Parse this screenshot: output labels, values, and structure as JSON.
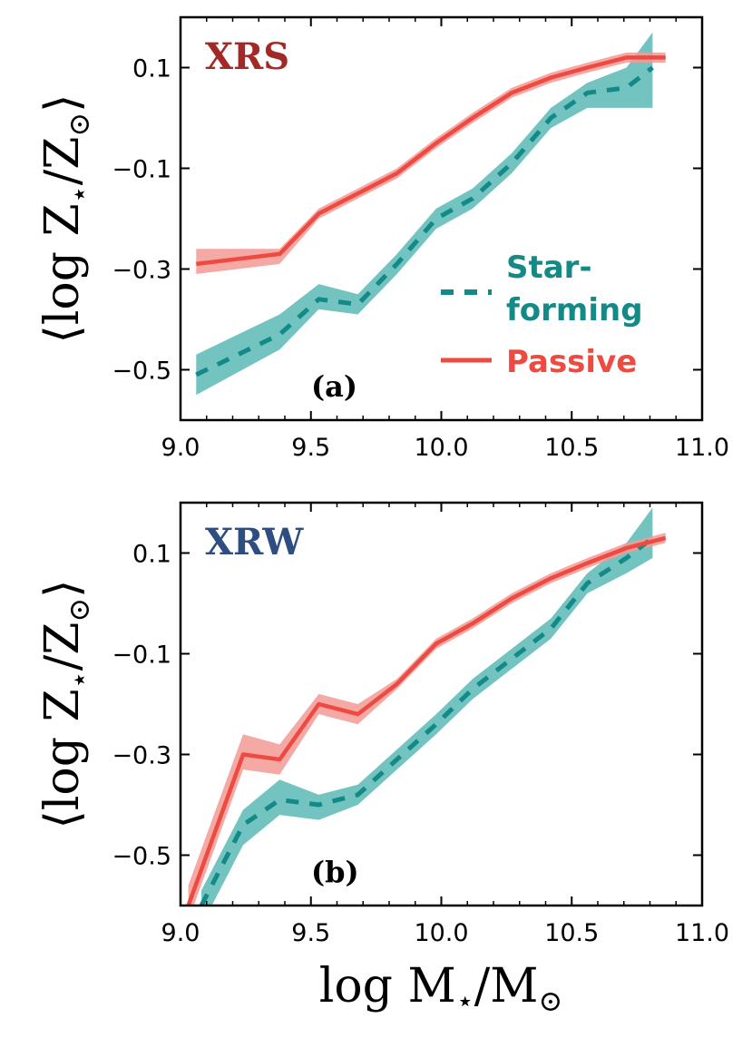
{
  "figure": {
    "xlabel": "log M",
    "xlabel_sub": "⋆",
    "xlabel_slash": "/M",
    "xlabel_sun": "⊙",
    "ylabel_open": "⟨log Z",
    "ylabel_sub": "⋆",
    "ylabel_mid": "/Z",
    "ylabel_sun": "⊙",
    "ylabel_close": "⟩",
    "legend": {
      "starforming_line1": "Star-",
      "starforming_line2": "forming",
      "passive": "Passive"
    }
  },
  "colors": {
    "starforming": "#138a86",
    "starforming_band": "#5bb8b6",
    "passive": "#ee4a42",
    "passive_band": "#f39a95",
    "xrs": "#a32828",
    "xrw": "#2e4e82"
  },
  "chart_data": [
    {
      "type": "line",
      "title": "XRS",
      "tag": "(a)",
      "xlim": [
        9.0,
        11.0
      ],
      "ylim": [
        -0.6,
        0.2
      ],
      "xticks": [
        "9.0",
        "9.5",
        "10.0",
        "10.5",
        "11.0"
      ],
      "yticks": [
        "0.1",
        "−0.1",
        "−0.3",
        "−0.5"
      ],
      "ytick_values": [
        0.1,
        -0.1,
        -0.3,
        -0.5
      ],
      "legend_position": "middle-right",
      "series": [
        {
          "name": "Star-forming",
          "style": "dashed",
          "x": [
            9.06,
            9.38,
            9.53,
            9.68,
            9.83,
            9.98,
            10.12,
            10.27,
            10.42,
            10.56,
            10.71,
            10.81
          ],
          "y": [
            -0.51,
            -0.43,
            -0.36,
            -0.37,
            -0.29,
            -0.2,
            -0.16,
            -0.09,
            0.0,
            0.05,
            0.06,
            0.1
          ],
          "y_low": [
            -0.55,
            -0.46,
            -0.38,
            -0.39,
            -0.31,
            -0.22,
            -0.18,
            -0.11,
            -0.02,
            0.02,
            0.02,
            0.02
          ],
          "y_high": [
            -0.47,
            -0.39,
            -0.33,
            -0.35,
            -0.27,
            -0.18,
            -0.14,
            -0.07,
            0.02,
            0.07,
            0.1,
            0.17
          ]
        },
        {
          "name": "Passive",
          "style": "solid",
          "x": [
            9.06,
            9.38,
            9.53,
            9.68,
            9.83,
            9.98,
            10.12,
            10.27,
            10.42,
            10.56,
            10.71,
            10.86
          ],
          "y": [
            -0.29,
            -0.27,
            -0.19,
            -0.15,
            -0.11,
            -0.05,
            0.0,
            0.05,
            0.08,
            0.1,
            0.12,
            0.12
          ],
          "y_low": [
            -0.31,
            -0.29,
            -0.2,
            -0.16,
            -0.12,
            -0.06,
            -0.01,
            0.04,
            0.07,
            0.09,
            0.11,
            0.11
          ],
          "y_high": [
            -0.26,
            -0.26,
            -0.18,
            -0.14,
            -0.1,
            -0.04,
            0.01,
            0.06,
            0.09,
            0.11,
            0.13,
            0.13
          ]
        }
      ]
    },
    {
      "type": "line",
      "title": "XRW",
      "tag": "(b)",
      "xlim": [
        9.0,
        11.0
      ],
      "ylim": [
        -0.6,
        0.2
      ],
      "xticks": [
        "9.0",
        "9.5",
        "10.0",
        "10.5",
        "11.0"
      ],
      "yticks": [
        "0.1",
        "−0.1",
        "−0.3",
        "−0.5"
      ],
      "ytick_values": [
        0.1,
        -0.1,
        -0.3,
        -0.5
      ],
      "series": [
        {
          "name": "Star-forming",
          "style": "dashed",
          "x": [
            9.08,
            9.24,
            9.38,
            9.53,
            9.68,
            9.83,
            9.98,
            10.12,
            10.27,
            10.42,
            10.56,
            10.71,
            10.81
          ],
          "y": [
            -0.6,
            -0.44,
            -0.39,
            -0.4,
            -0.38,
            -0.31,
            -0.24,
            -0.17,
            -0.11,
            -0.05,
            0.04,
            0.09,
            0.13
          ],
          "y_low": [
            -0.64,
            -0.48,
            -0.42,
            -0.43,
            -0.4,
            -0.33,
            -0.26,
            -0.19,
            -0.13,
            -0.07,
            0.02,
            0.06,
            0.09
          ],
          "y_high": [
            -0.57,
            -0.41,
            -0.35,
            -0.38,
            -0.36,
            -0.29,
            -0.22,
            -0.15,
            -0.09,
            -0.03,
            0.06,
            0.12,
            0.19
          ]
        },
        {
          "name": "Passive",
          "style": "solid",
          "x": [
            9.03,
            9.24,
            9.38,
            9.53,
            9.68,
            9.83,
            9.98,
            10.12,
            10.27,
            10.42,
            10.56,
            10.71,
            10.86
          ],
          "y": [
            -0.6,
            -0.3,
            -0.31,
            -0.2,
            -0.22,
            -0.16,
            -0.08,
            -0.04,
            0.01,
            0.05,
            0.08,
            0.11,
            0.13
          ],
          "y_low": [
            -0.63,
            -0.33,
            -0.34,
            -0.22,
            -0.24,
            -0.17,
            -0.09,
            -0.05,
            0.0,
            0.04,
            0.07,
            0.1,
            0.12
          ],
          "y_high": [
            -0.56,
            -0.26,
            -0.28,
            -0.18,
            -0.2,
            -0.15,
            -0.07,
            -0.03,
            0.02,
            0.06,
            0.09,
            0.12,
            0.14
          ]
        }
      ]
    }
  ]
}
